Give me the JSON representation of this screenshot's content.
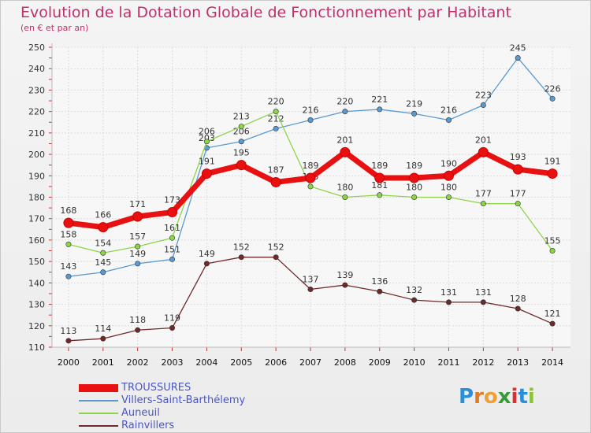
{
  "title": "Evolution de la Dotation Globale de Fonctionnement par Habitant",
  "subtitle": "(en € et par an)",
  "logo": {
    "letters": [
      {
        "ch": "P",
        "color": "#2a8fd6"
      },
      {
        "ch": "r",
        "color": "#e07b1f"
      },
      {
        "ch": "o",
        "color": "#f0a030"
      },
      {
        "ch": "x",
        "color": "#3a9a3a"
      },
      {
        "ch": "i",
        "color": "#d83030"
      },
      {
        "ch": "t",
        "color": "#2a8fd6"
      },
      {
        "ch": "i",
        "color": "#8ac43a"
      }
    ]
  },
  "chart_data": {
    "type": "line",
    "categories": [
      "2000",
      "2001",
      "2002",
      "2003",
      "2004",
      "2005",
      "2006",
      "2007",
      "2008",
      "2009",
      "2010",
      "2011",
      "2012",
      "2013",
      "2014"
    ],
    "ylim": [
      110,
      250
    ],
    "yticks": [
      110,
      120,
      130,
      140,
      150,
      160,
      170,
      180,
      190,
      200,
      210,
      220,
      230,
      240,
      250
    ],
    "grid": true,
    "legend_position": "bottom-left",
    "series": [
      {
        "name": "TROUSSURES",
        "color": "#e81010",
        "values": [
          168,
          166,
          171,
          173,
          191,
          195,
          187,
          189,
          201,
          189,
          189,
          190,
          201,
          193,
          191
        ]
      },
      {
        "name": "Villers-Saint-Barthélemy",
        "color": "#5a9ad2",
        "values": [
          143,
          145,
          149,
          151,
          203,
          206,
          212,
          216,
          220,
          221,
          219,
          216,
          223,
          245,
          226
        ]
      },
      {
        "name": "Auneuil",
        "color": "#8ed44a",
        "values": [
          158,
          154,
          157,
          161,
          206,
          213,
          220,
          185,
          180,
          181,
          180,
          180,
          177,
          177,
          155
        ]
      },
      {
        "name": "Rainvillers",
        "color": "#6e2a2a",
        "values": [
          113,
          114,
          118,
          119,
          149,
          152,
          152,
          137,
          139,
          136,
          132,
          131,
          131,
          128,
          121
        ]
      }
    ]
  }
}
